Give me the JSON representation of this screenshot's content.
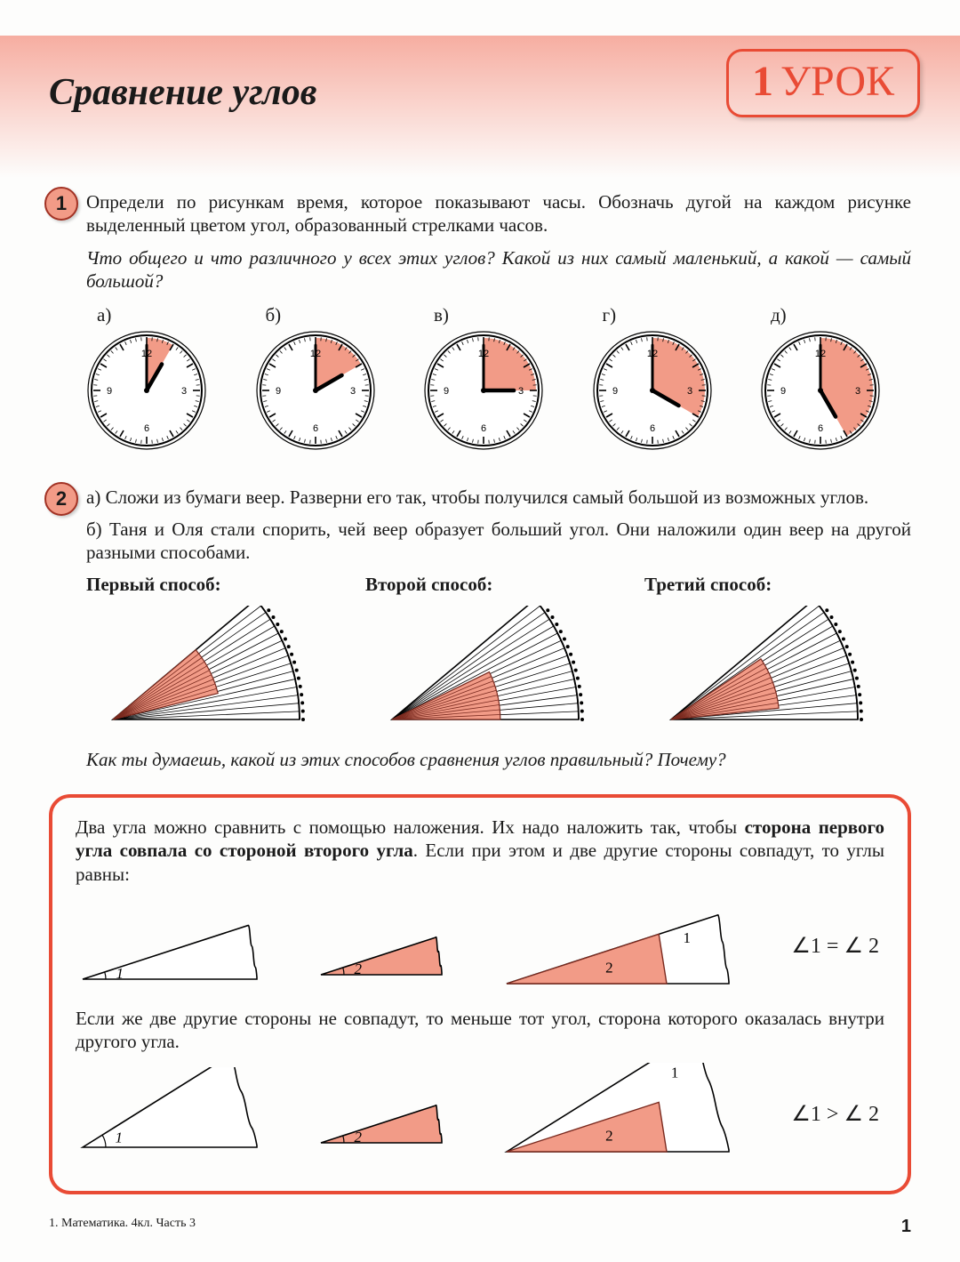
{
  "header": {
    "title": "Сравнение углов",
    "title_fontsize": 42,
    "lesson_number": "1",
    "lesson_word": "УРОК",
    "lesson_fontsize": 48,
    "gradient_from": "rgba(242,120,100,0.6)"
  },
  "colors": {
    "accent": "#e94b35",
    "fill": "#f29b87",
    "marker_fill": "#f29b87",
    "marker_border": "#a23224",
    "text": "#1a1a1a",
    "background": "#fdfdfc"
  },
  "task1": {
    "number": "1",
    "p1": "Определи по рисункам время, которое показывают часы. Обозначь дугой на каждом рисунке выделенный цветом угол, образованный стрелками часов.",
    "p2": "Что общего и что различного у всех этих углов? Какой из них самый маленький, а какой — самый большой?",
    "clocks": [
      {
        "label": "а)",
        "hour_angle": 30,
        "minute_angle": 0,
        "sector_from": 0,
        "sector_to": 30
      },
      {
        "label": "б)",
        "hour_angle": 60,
        "minute_angle": 0,
        "sector_from": 0,
        "sector_to": 60
      },
      {
        "label": "в)",
        "hour_angle": 90,
        "minute_angle": 0,
        "sector_from": 0,
        "sector_to": 90
      },
      {
        "label": "г)",
        "hour_angle": 120,
        "minute_angle": 0,
        "sector_from": 0,
        "sector_to": 120
      },
      {
        "label": "д)",
        "hour_angle": 150,
        "minute_angle": 0,
        "sector_from": 0,
        "sector_to": 150
      }
    ],
    "clock_numerals": {
      "12": "12",
      "3": "3",
      "6": "6",
      "9": "9"
    },
    "clock_radius": 62,
    "clock_tick_color": "#000000",
    "sector_color": "#f29b87"
  },
  "task2": {
    "number": "2",
    "pa": "а) Сложи из бумаги веер. Разверни его так, чтобы получился самый большой из возможных углов.",
    "pb": "б) Таня и Оля стали спорить, чей веер образует больший угол. Они нало­жили один веер на другой разными способами.",
    "methods": [
      {
        "head": "Первый способ:",
        "outer_from": 0,
        "outer_to": 40,
        "inner_from": 14,
        "inner_to": 40,
        "inner_scale": 0.58
      },
      {
        "head": "Второй способ:",
        "outer_from": 0,
        "outer_to": 40,
        "inner_from": 0,
        "inner_to": 26,
        "inner_scale": 0.58
      },
      {
        "head": "Третий способ:",
        "outer_from": 0,
        "outer_to": 40,
        "inner_from": 6,
        "inner_to": 34,
        "inner_scale": 0.58
      }
    ],
    "q": "Как ты думаешь, какой из этих способов сравнения углов правильный? Почему?"
  },
  "rule": {
    "p1a": "Два угла можно сравнить с помощью наложения. Их надо наложить так, чтобы ",
    "p1b": "сторона первого угла совпала со стороной второго угла",
    "p1c": ". Если при этом и две другие стороны совпадут, то углы равны:",
    "p2": "Если же две другие стороны не совпадут, то меньше тот угол, сторона которого оказалась внутри другого угла.",
    "row1": {
      "angle1_deg": 18,
      "angle1_label": "1",
      "angle2_deg": 18,
      "angle2_label": "2",
      "overlay_outer_deg": 18,
      "overlay_inner_deg": 18,
      "overlay_label_outer": "1",
      "overlay_label_inner": "2",
      "formula": "∠1 = ∠ 2"
    },
    "row2": {
      "angle1_deg": 32,
      "angle1_label": "1",
      "angle2_deg": 18,
      "angle2_label": "2",
      "overlay_outer_deg": 32,
      "overlay_inner_deg": 18,
      "overlay_label_outer": "1",
      "overlay_label_inner": "2",
      "formula": "∠1 > ∠ 2"
    },
    "angle_label_fontsize": 17,
    "formula_fontsize": 24
  },
  "footer": {
    "left": "1. Математика. 4кл. Часть 3",
    "page": "1"
  }
}
